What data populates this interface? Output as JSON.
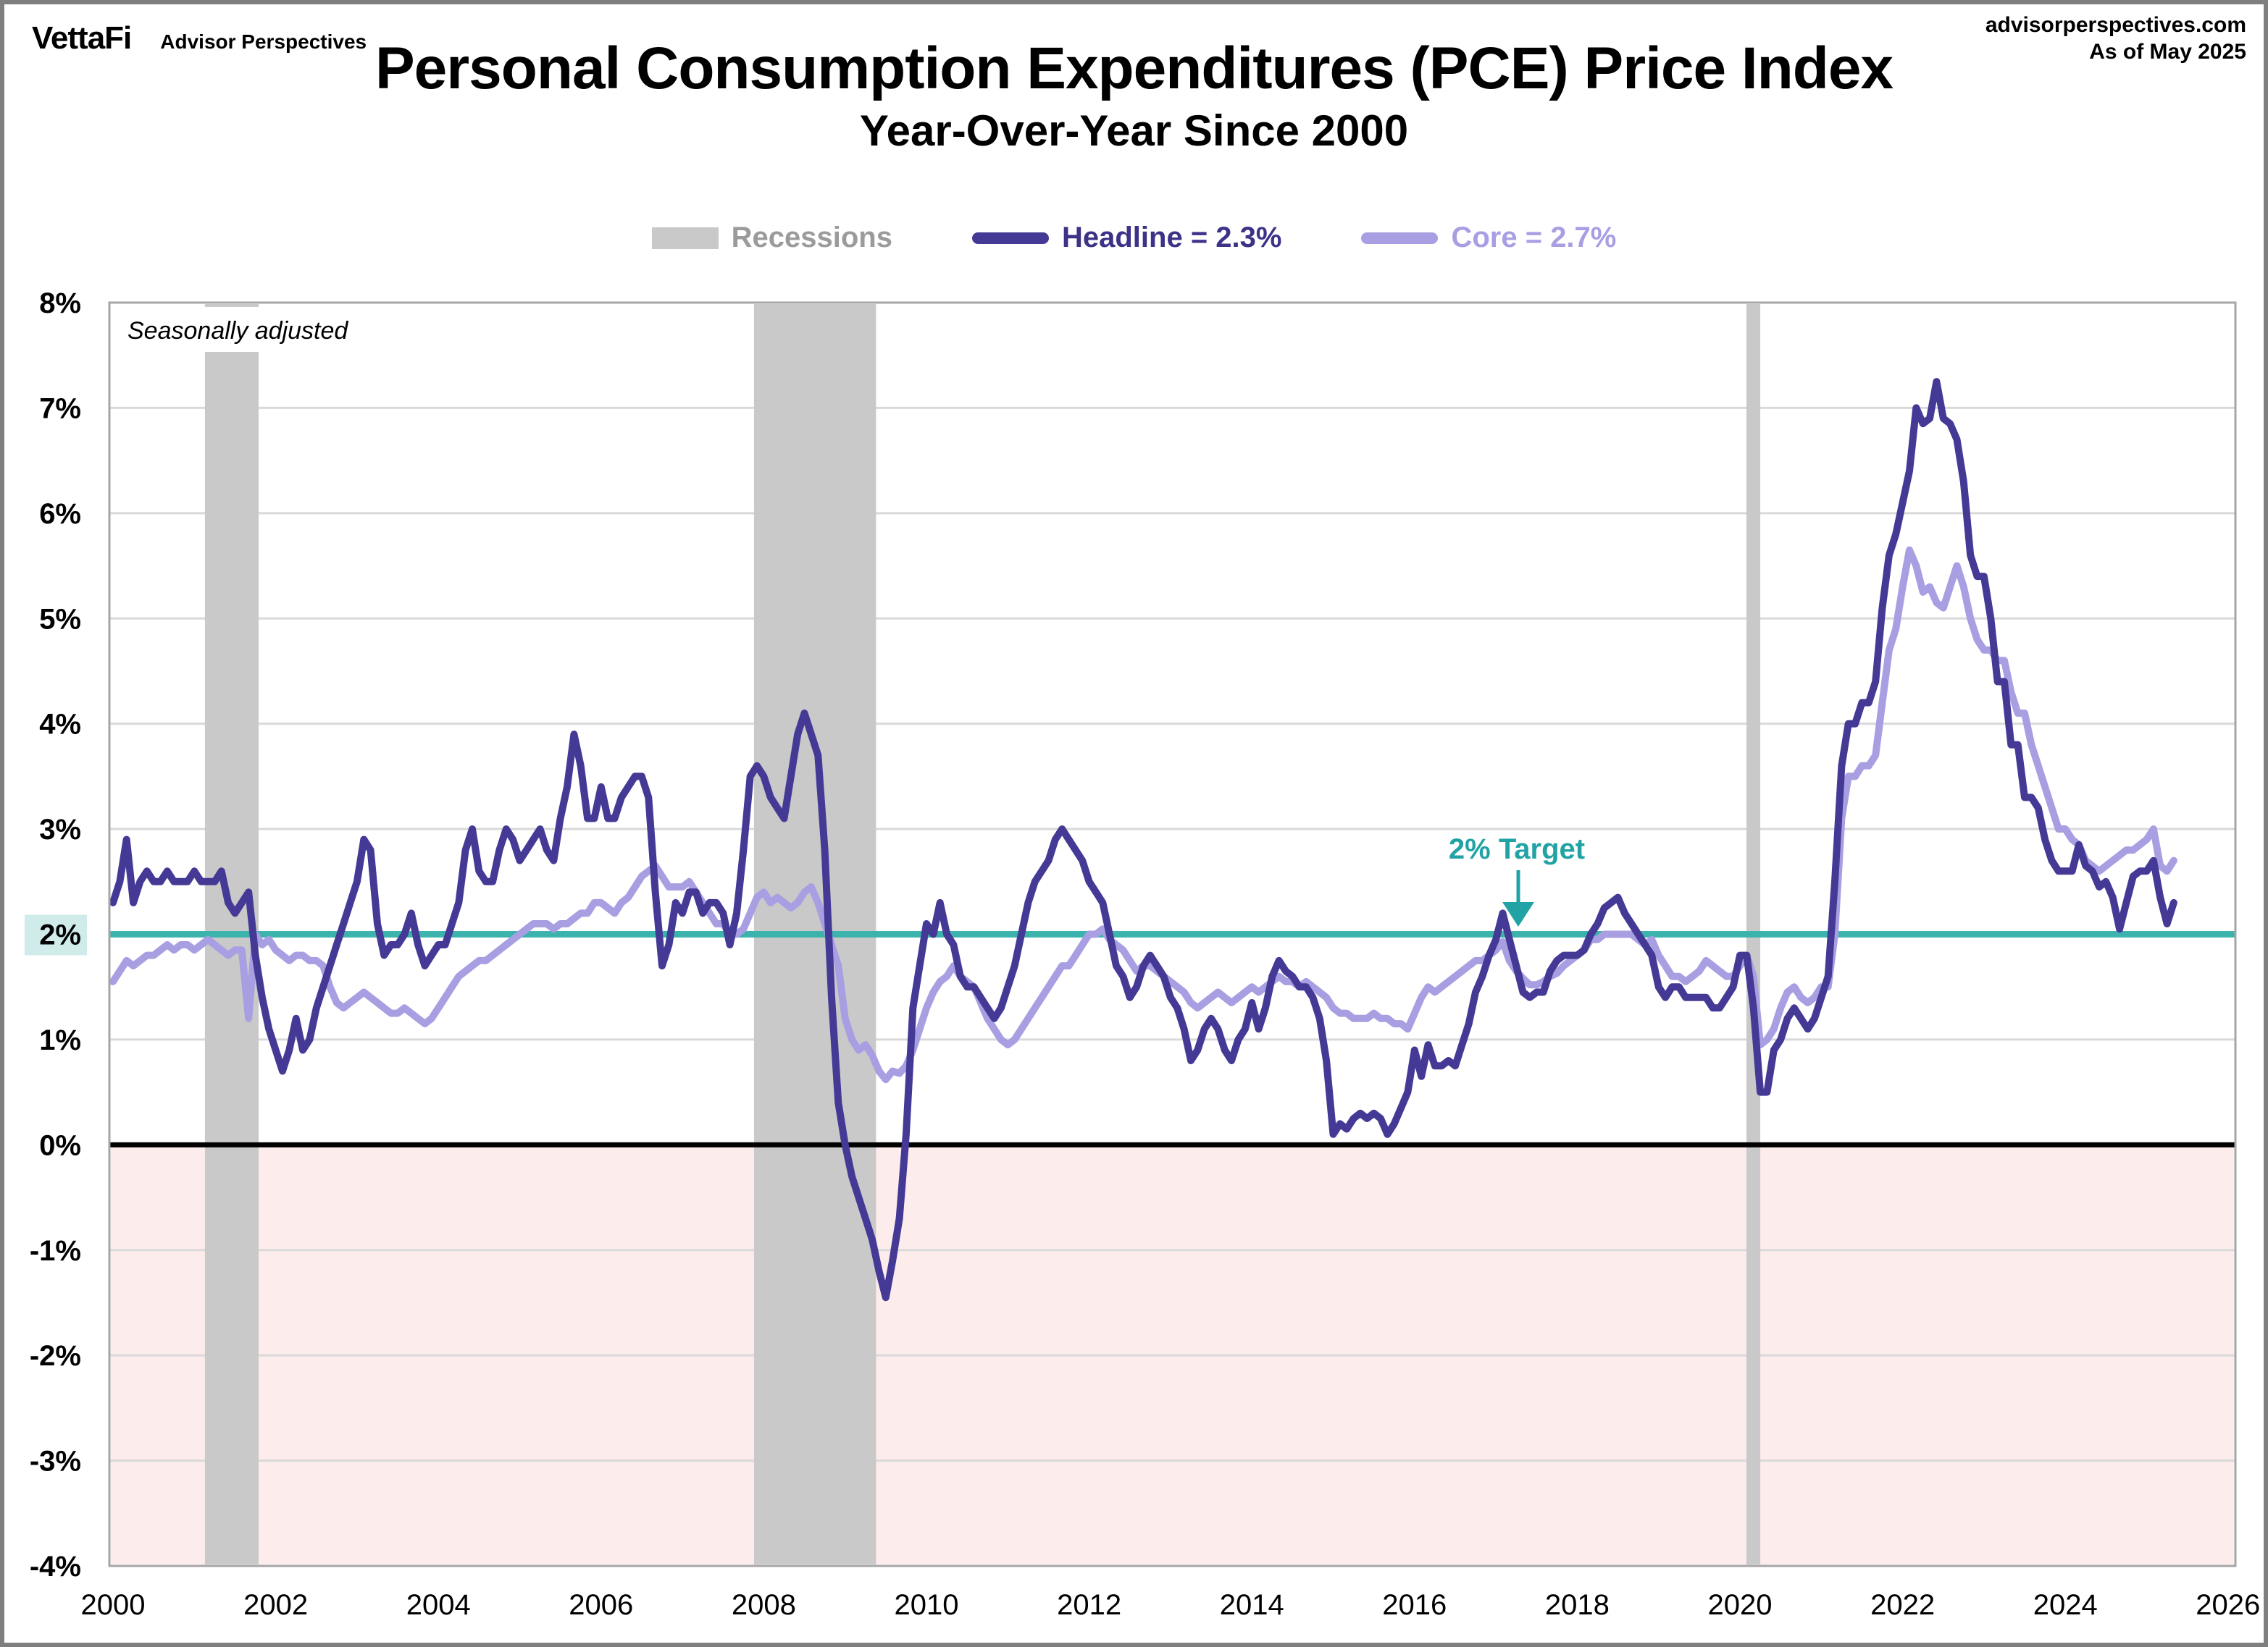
{
  "header": {
    "logo": "VettaFi",
    "brand": "Advisor Perspectives",
    "site": "advisorperspectives.com",
    "as_of": "As of May 2025"
  },
  "title": "Personal Consumption Expenditures (PCE) Price Index",
  "subtitle": "Year-Over-Year Since 2000",
  "legend": {
    "items": [
      {
        "label": "Recessions",
        "swatch": "box",
        "color": "#c9c9c9",
        "text_color": "#9b9b9b"
      },
      {
        "label": "Headline = 2.3%",
        "swatch": "line",
        "color": "#443a96",
        "text_color": "#3c3287"
      },
      {
        "label": "Core = 2.7%",
        "swatch": "line",
        "color": "#a89fe3",
        "text_color": "#a89fe3"
      }
    ]
  },
  "plot_notes": {
    "seasonally_adjusted": "Seasonally adjusted",
    "target_label": "2% Target"
  },
  "chart_data": {
    "type": "line",
    "title": "Personal Consumption Expenditures (PCE) Price Index",
    "subtitle": "Year-Over-Year Since 2000",
    "x_start_year": 2000,
    "x_interval_months": 1,
    "xlim": [
      2000,
      2026.1
    ],
    "ylim": [
      -4,
      8
    ],
    "x_ticks": [
      2000,
      2002,
      2004,
      2006,
      2008,
      2010,
      2012,
      2014,
      2016,
      2018,
      2020,
      2022,
      2024,
      2026
    ],
    "y_ticks": [
      8,
      7,
      6,
      5,
      4,
      3,
      2,
      1,
      0,
      -1,
      -2,
      -3,
      -4
    ],
    "y_tick_suffix": "%",
    "y_tick_highlight": 2,
    "grid": true,
    "legend_position": "top",
    "target_line": 2,
    "zero_line": 0,
    "recessions": [
      [
        2001.13,
        2001.79
      ],
      [
        2007.88,
        2009.38
      ],
      [
        2020.08,
        2020.25
      ]
    ],
    "colors": {
      "target_line": "#3db3ae",
      "target_text": "#21a3a6",
      "negative_fill": "#fdecec",
      "recession": "#c9c9c9",
      "grid": "#d9d9d9",
      "border": "#a6a6a6",
      "zero_line": "#000000",
      "tick_highlight": "#cfeceb"
    },
    "series": [
      {
        "name": "Headline",
        "current": "2.3%",
        "color": "#443a96",
        "values": [
          2.3,
          2.5,
          2.9,
          2.3,
          2.5,
          2.6,
          2.5,
          2.5,
          2.6,
          2.5,
          2.5,
          2.5,
          2.6,
          2.5,
          2.5,
          2.5,
          2.6,
          2.3,
          2.2,
          2.3,
          2.4,
          1.8,
          1.4,
          1.1,
          0.9,
          0.7,
          0.9,
          1.2,
          0.9,
          1.0,
          1.3,
          1.5,
          1.7,
          1.9,
          2.1,
          2.3,
          2.5,
          2.9,
          2.8,
          2.1,
          1.8,
          1.9,
          1.9,
          2.0,
          2.2,
          1.9,
          1.7,
          1.8,
          1.9,
          1.9,
          2.1,
          2.3,
          2.8,
          3.0,
          2.6,
          2.5,
          2.5,
          2.8,
          3.0,
          2.9,
          2.7,
          2.8,
          2.9,
          3.0,
          2.8,
          2.7,
          3.1,
          3.4,
          3.9,
          3.6,
          3.1,
          3.1,
          3.4,
          3.1,
          3.1,
          3.3,
          3.4,
          3.5,
          3.5,
          3.3,
          2.4,
          1.7,
          1.9,
          2.3,
          2.2,
          2.4,
          2.4,
          2.2,
          2.3,
          2.3,
          2.2,
          1.9,
          2.2,
          2.8,
          3.5,
          3.6,
          3.5,
          3.3,
          3.2,
          3.1,
          3.5,
          3.9,
          4.1,
          3.9,
          3.7,
          2.8,
          1.4,
          0.4,
          0.0,
          -0.3,
          -0.5,
          -0.7,
          -0.9,
          -1.2,
          -1.45,
          -1.1,
          -0.7,
          0.1,
          1.3,
          1.7,
          2.1,
          2.0,
          2.3,
          2.0,
          1.9,
          1.6,
          1.5,
          1.5,
          1.4,
          1.3,
          1.2,
          1.3,
          1.5,
          1.7,
          2.0,
          2.3,
          2.5,
          2.6,
          2.7,
          2.9,
          3.0,
          2.9,
          2.8,
          2.7,
          2.5,
          2.4,
          2.3,
          2.0,
          1.7,
          1.6,
          1.4,
          1.5,
          1.7,
          1.8,
          1.7,
          1.6,
          1.4,
          1.3,
          1.1,
          0.8,
          0.9,
          1.1,
          1.2,
          1.1,
          0.9,
          0.8,
          1.0,
          1.1,
          1.35,
          1.1,
          1.3,
          1.6,
          1.75,
          1.65,
          1.6,
          1.5,
          1.5,
          1.4,
          1.2,
          0.8,
          0.1,
          0.2,
          0.15,
          0.25,
          0.3,
          0.25,
          0.3,
          0.25,
          0.1,
          0.2,
          0.35,
          0.5,
          0.9,
          0.65,
          0.95,
          0.75,
          0.75,
          0.8,
          0.75,
          0.95,
          1.15,
          1.45,
          1.6,
          1.8,
          1.95,
          2.2,
          1.95,
          1.7,
          1.45,
          1.4,
          1.45,
          1.45,
          1.65,
          1.75,
          1.8,
          1.8,
          1.8,
          1.85,
          2.0,
          2.1,
          2.25,
          2.3,
          2.35,
          2.2,
          2.1,
          2.0,
          1.9,
          1.8,
          1.5,
          1.4,
          1.5,
          1.5,
          1.4,
          1.4,
          1.4,
          1.4,
          1.3,
          1.3,
          1.4,
          1.5,
          1.8,
          1.8,
          1.3,
          0.5,
          0.5,
          0.9,
          1.0,
          1.2,
          1.3,
          1.2,
          1.1,
          1.2,
          1.4,
          1.6,
          2.5,
          3.6,
          4.0,
          4.0,
          4.2,
          4.2,
          4.4,
          5.1,
          5.6,
          5.8,
          6.1,
          6.4,
          7.0,
          6.85,
          6.9,
          7.25,
          6.9,
          6.85,
          6.7,
          6.3,
          5.6,
          5.4,
          5.4,
          5.0,
          4.4,
          4.4,
          3.8,
          3.8,
          3.3,
          3.3,
          3.2,
          2.9,
          2.7,
          2.6,
          2.6,
          2.6,
          2.85,
          2.65,
          2.6,
          2.45,
          2.5,
          2.35,
          2.05,
          2.3,
          2.55,
          2.6,
          2.6,
          2.7,
          2.35,
          2.1,
          2.3
        ]
      },
      {
        "name": "Core",
        "current": "2.7%",
        "color": "#a89fe3",
        "values": [
          1.55,
          1.65,
          1.75,
          1.7,
          1.75,
          1.8,
          1.8,
          1.85,
          1.9,
          1.85,
          1.9,
          1.9,
          1.85,
          1.9,
          1.95,
          1.9,
          1.85,
          1.8,
          1.85,
          1.85,
          1.2,
          2.0,
          1.9,
          1.95,
          1.85,
          1.8,
          1.75,
          1.8,
          1.8,
          1.75,
          1.75,
          1.7,
          1.5,
          1.35,
          1.3,
          1.35,
          1.4,
          1.45,
          1.4,
          1.35,
          1.3,
          1.25,
          1.25,
          1.3,
          1.25,
          1.2,
          1.15,
          1.2,
          1.3,
          1.4,
          1.5,
          1.6,
          1.65,
          1.7,
          1.75,
          1.75,
          1.8,
          1.85,
          1.9,
          1.95,
          2.0,
          2.05,
          2.1,
          2.1,
          2.1,
          2.05,
          2.1,
          2.1,
          2.15,
          2.2,
          2.2,
          2.3,
          2.3,
          2.25,
          2.2,
          2.3,
          2.35,
          2.45,
          2.55,
          2.6,
          2.65,
          2.55,
          2.45,
          2.45,
          2.45,
          2.5,
          2.4,
          2.3,
          2.2,
          2.1,
          2.1,
          2.0,
          2.0,
          2.05,
          2.2,
          2.35,
          2.4,
          2.3,
          2.35,
          2.3,
          2.25,
          2.3,
          2.4,
          2.45,
          2.3,
          2.1,
          1.9,
          1.7,
          1.2,
          1.0,
          0.9,
          0.95,
          0.85,
          0.7,
          0.62,
          0.7,
          0.68,
          0.75,
          0.9,
          1.1,
          1.3,
          1.45,
          1.55,
          1.6,
          1.7,
          1.6,
          1.55,
          1.5,
          1.35,
          1.2,
          1.1,
          1.0,
          0.95,
          1.0,
          1.1,
          1.2,
          1.3,
          1.4,
          1.5,
          1.6,
          1.7,
          1.7,
          1.8,
          1.9,
          2.0,
          2.0,
          2.05,
          1.95,
          1.9,
          1.85,
          1.75,
          1.65,
          1.7,
          1.7,
          1.65,
          1.6,
          1.55,
          1.5,
          1.45,
          1.35,
          1.3,
          1.35,
          1.4,
          1.45,
          1.4,
          1.35,
          1.4,
          1.45,
          1.5,
          1.45,
          1.5,
          1.55,
          1.6,
          1.55,
          1.55,
          1.5,
          1.55,
          1.5,
          1.45,
          1.4,
          1.3,
          1.25,
          1.25,
          1.2,
          1.2,
          1.2,
          1.25,
          1.2,
          1.2,
          1.15,
          1.15,
          1.1,
          1.25,
          1.4,
          1.5,
          1.45,
          1.5,
          1.55,
          1.6,
          1.65,
          1.7,
          1.75,
          1.75,
          1.8,
          1.85,
          1.93,
          1.75,
          1.65,
          1.58,
          1.52,
          1.52,
          1.55,
          1.6,
          1.63,
          1.7,
          1.75,
          1.8,
          1.85,
          1.95,
          1.95,
          2.0,
          2.0,
          2.0,
          2.0,
          2.0,
          1.95,
          1.9,
          1.95,
          1.8,
          1.7,
          1.6,
          1.6,
          1.55,
          1.6,
          1.65,
          1.75,
          1.7,
          1.65,
          1.6,
          1.6,
          1.7,
          1.8,
          1.6,
          0.95,
          1.0,
          1.1,
          1.3,
          1.45,
          1.5,
          1.4,
          1.35,
          1.4,
          1.5,
          1.5,
          2.0,
          3.1,
          3.5,
          3.5,
          3.6,
          3.6,
          3.7,
          4.2,
          4.7,
          4.9,
          5.3,
          5.65,
          5.5,
          5.25,
          5.3,
          5.15,
          5.1,
          5.3,
          5.5,
          5.3,
          5.0,
          4.8,
          4.7,
          4.7,
          4.6,
          4.6,
          4.3,
          4.1,
          4.1,
          3.8,
          3.6,
          3.4,
          3.2,
          3.0,
          3.0,
          2.9,
          2.85,
          2.7,
          2.65,
          2.6,
          2.65,
          2.7,
          2.75,
          2.8,
          2.8,
          2.85,
          2.9,
          3.0,
          2.65,
          2.6,
          2.7
        ]
      }
    ]
  }
}
